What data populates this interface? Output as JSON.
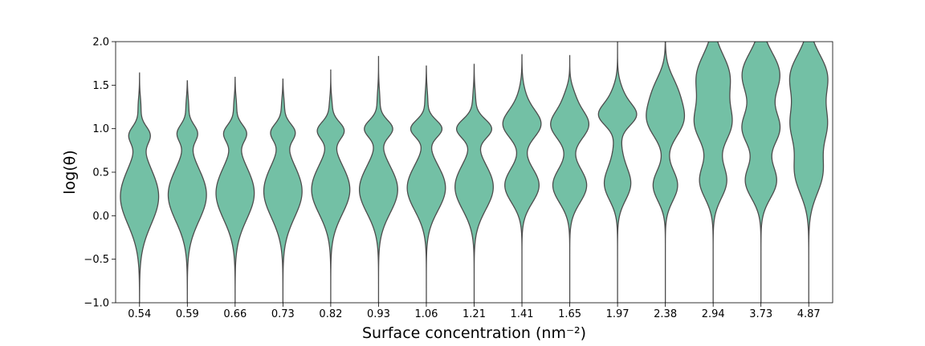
{
  "chart_data": {
    "type": "violin",
    "xlabel": "Surface concentration (nm⁻²)",
    "ylabel": "log(θ)",
    "categories": [
      "0.54",
      "0.59",
      "0.66",
      "0.73",
      "0.82",
      "0.93",
      "1.06",
      "1.21",
      "1.41",
      "1.65",
      "1.97",
      "2.38",
      "2.94",
      "3.73",
      "4.87"
    ],
    "ylim": [
      -1.0,
      2.0
    ],
    "yticks": [
      -1.0,
      -0.5,
      0.0,
      0.5,
      1.0,
      1.5,
      2.0
    ],
    "ytick_labels": [
      "−1.0",
      "−0.5",
      "0.0",
      "0.5",
      "1.0",
      "1.5",
      "2.0"
    ],
    "grid": false,
    "fill_color": "#73c0a5",
    "edge_color": "#4d4d4d",
    "violins": [
      {
        "category": "0.54",
        "max": 1.64,
        "min": -1.0,
        "components": [
          [
            0.22,
            0.32,
            0.88
          ],
          [
            0.93,
            0.1,
            0.42
          ],
          [
            1.25,
            0.12,
            0.06
          ]
        ]
      },
      {
        "category": "0.59",
        "max": 1.55,
        "min": -1.0,
        "components": [
          [
            0.24,
            0.3,
            0.88
          ],
          [
            0.95,
            0.1,
            0.42
          ],
          [
            1.25,
            0.12,
            0.06
          ]
        ]
      },
      {
        "category": "0.66",
        "max": 1.59,
        "min": -1.0,
        "components": [
          [
            0.26,
            0.3,
            0.85
          ],
          [
            0.95,
            0.1,
            0.45
          ],
          [
            1.25,
            0.12,
            0.06
          ]
        ]
      },
      {
        "category": "0.73",
        "max": 1.57,
        "min": -1.0,
        "components": [
          [
            0.28,
            0.3,
            0.85
          ],
          [
            0.96,
            0.1,
            0.48
          ],
          [
            1.25,
            0.12,
            0.06
          ]
        ]
      },
      {
        "category": "0.82",
        "max": 1.68,
        "min": -1.0,
        "components": [
          [
            0.3,
            0.28,
            0.85
          ],
          [
            0.98,
            0.1,
            0.55
          ],
          [
            1.25,
            0.12,
            0.06
          ]
        ]
      },
      {
        "category": "0.93",
        "max": 1.83,
        "min": -1.0,
        "components": [
          [
            0.3,
            0.27,
            0.83
          ],
          [
            1.0,
            0.1,
            0.58
          ],
          [
            1.3,
            0.15,
            0.06
          ]
        ]
      },
      {
        "category": "1.06",
        "max": 1.72,
        "min": -1.0,
        "components": [
          [
            0.32,
            0.26,
            0.8
          ],
          [
            1.0,
            0.1,
            0.62
          ],
          [
            1.3,
            0.15,
            0.06
          ]
        ]
      },
      {
        "category": "1.21",
        "max": 1.74,
        "min": -1.0,
        "components": [
          [
            0.33,
            0.26,
            0.78
          ],
          [
            1.0,
            0.11,
            0.68
          ],
          [
            1.3,
            0.15,
            0.06
          ]
        ]
      },
      {
        "category": "1.41",
        "max": 1.85,
        "min": -1.0,
        "components": [
          [
            0.35,
            0.2,
            0.75
          ],
          [
            1.05,
            0.16,
            0.82
          ],
          [
            1.35,
            0.15,
            0.12
          ]
        ]
      },
      {
        "category": "1.65",
        "max": 1.84,
        "min": -1.0,
        "components": [
          [
            0.35,
            0.2,
            0.8
          ],
          [
            1.05,
            0.17,
            0.9
          ],
          [
            1.38,
            0.12,
            0.15
          ]
        ]
      },
      {
        "category": "1.97",
        "max": 2.02,
        "min": -1.0,
        "components": [
          [
            0.35,
            0.18,
            0.65
          ],
          [
            1.15,
            0.12,
            0.95
          ],
          [
            1.35,
            0.15,
            0.35
          ],
          [
            0.65,
            0.3,
            0.25
          ]
        ]
      },
      {
        "category": "2.38",
        "max": 2.02,
        "min": -1.0,
        "components": [
          [
            0.35,
            0.18,
            0.6
          ],
          [
            1.1,
            0.2,
            0.85
          ],
          [
            1.45,
            0.18,
            0.45
          ]
        ]
      },
      {
        "category": "2.94",
        "max": 2.02,
        "min": -1.0,
        "components": [
          [
            0.4,
            0.2,
            0.62
          ],
          [
            1.05,
            0.22,
            0.8
          ],
          [
            1.6,
            0.25,
            0.75
          ]
        ]
      },
      {
        "category": "3.73",
        "max": 2.02,
        "min": -1.0,
        "components": [
          [
            0.4,
            0.2,
            0.62
          ],
          [
            1.0,
            0.2,
            0.72
          ],
          [
            1.62,
            0.25,
            0.75
          ]
        ]
      },
      {
        "category": "4.87",
        "max": 2.02,
        "min": -1.0,
        "components": [
          [
            0.5,
            0.25,
            0.6
          ],
          [
            1.05,
            0.22,
            0.7
          ],
          [
            1.6,
            0.25,
            0.8
          ]
        ]
      }
    ]
  }
}
